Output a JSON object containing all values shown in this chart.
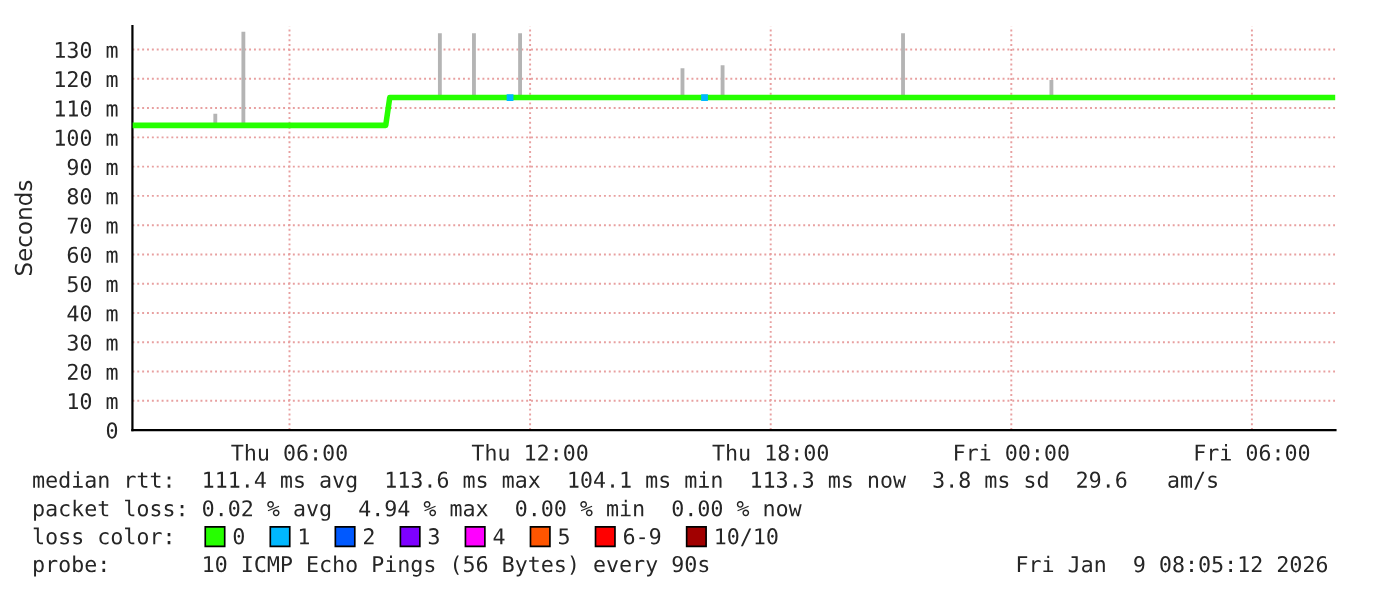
{
  "chart_data": {
    "type": "line",
    "ylabel": "Seconds",
    "xlim": [
      "2026-01-08T02:05",
      "2026-01-09T08:05"
    ],
    "xticks": [
      {
        "value": "2026-01-08T06:00",
        "label": "Thu 06:00"
      },
      {
        "value": "2026-01-08T12:00",
        "label": "Thu 12:00"
      },
      {
        "value": "2026-01-08T18:00",
        "label": "Thu 18:00"
      },
      {
        "value": "2026-01-09T00:00",
        "label": "Fri 00:00"
      },
      {
        "value": "2026-01-09T06:00",
        "label": "Fri 06:00"
      }
    ],
    "ylim": [
      0,
      138
    ],
    "yticks": [
      0,
      {
        "value": 10,
        "label": "10 m"
      },
      {
        "value": 20,
        "label": "20 m"
      },
      {
        "value": 30,
        "label": "30 m"
      },
      {
        "value": 40,
        "label": "40 m"
      },
      {
        "value": 50,
        "label": "50 m"
      },
      {
        "value": 60,
        "label": "60 m"
      },
      {
        "value": 70,
        "label": "70 m"
      },
      {
        "value": 80,
        "label": "80 m"
      },
      {
        "value": 90,
        "label": "90 m"
      },
      {
        "value": 100,
        "label": "100 m"
      },
      {
        "value": 110,
        "label": "110 m"
      },
      {
        "value": 120,
        "label": "120 m"
      },
      {
        "value": 130,
        "label": "130 m"
      }
    ],
    "grid": true,
    "legend": "bottom",
    "legend_title": "loss color:",
    "series": [
      {
        "type": "bar",
        "color": "#b4b4b4",
        "x": [
          "2026-01-08T04:09",
          "2026-01-08T04:51",
          "2026-01-08T09:45",
          "2026-01-08T10:36",
          "2026-01-08T11:45",
          "2026-01-08T15:48",
          "2026-01-08T16:48",
          "2026-01-08T21:18",
          "2026-01-09T01:00"
        ],
        "base": [
          104.1,
          104.1,
          113.6,
          113.6,
          113.6,
          113.6,
          113.6,
          113.6,
          113.6
        ],
        "values": [
          4,
          32,
          22,
          22,
          22,
          10,
          11,
          22,
          6
        ]
      },
      {
        "name": "0",
        "color": "#26ff00",
        "x": [
          "2026-01-08T02:05",
          "2026-01-08T08:24",
          "2026-01-08T08:30",
          "2026-01-09T08:05"
        ],
        "values": [
          104.1,
          104.1,
          113.6,
          113.6
        ]
      },
      {
        "name": "1",
        "type": "scatter",
        "marker": "square",
        "color": "#00b8ff",
        "x": [
          "2026-01-08T11:30",
          "2026-01-08T16:21"
        ],
        "values": [
          113.6,
          113.6
        ]
      },
      {
        "name": "2",
        "color": "#0059ff"
      },
      {
        "name": "3",
        "color": "#7e00ff"
      },
      {
        "name": "4",
        "color": "#ff00ff"
      },
      {
        "name": "5",
        "color": "#ff5500"
      },
      {
        "name": "6-9",
        "color": "#ff0000"
      },
      {
        "name": "10/10",
        "color": "#a10000"
      }
    ],
    "annotations": [
      "median rtt:  111.4 ms avg  113.6 ms max  104.1 ms min  113.3 ms now  3.8 ms sd  29.6   am/s",
      "packet loss: 0.02 % avg  4.94 % max  0.00 % min  0.00 % now",
      "probe:       10 ICMP Echo Pings (56 Bytes) every 90s",
      "Fri Jan  9 08:05:12 2026"
    ]
  }
}
